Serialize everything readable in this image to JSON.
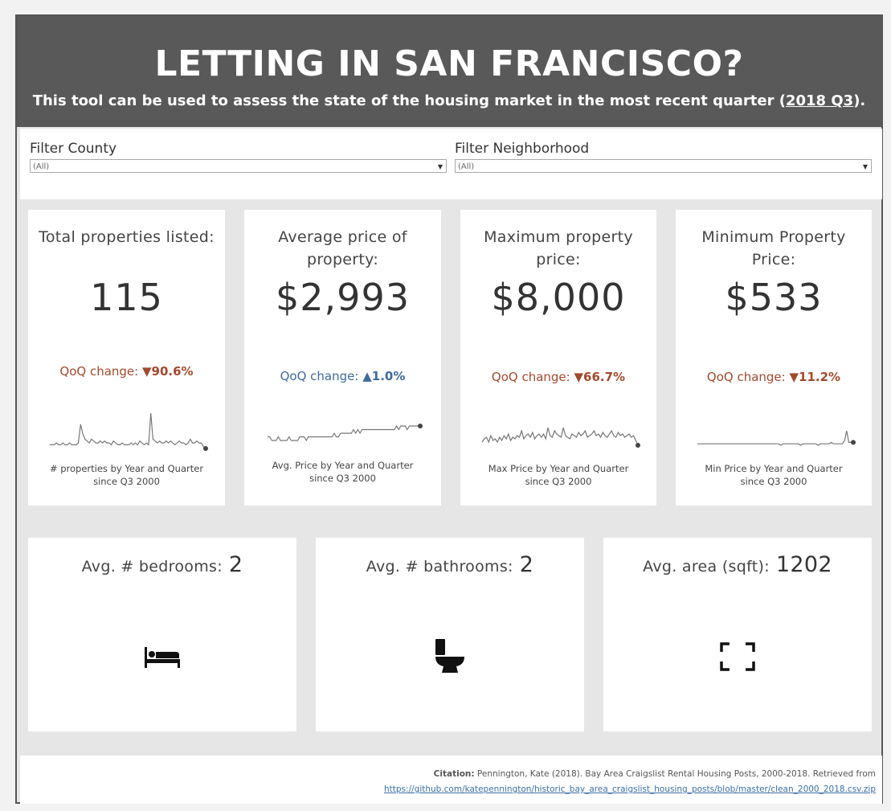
{
  "header": {
    "title": "LETTING IN SAN FRANCISCO?",
    "subtitle_pre": "This tool can be used to assess the state of the housing market in the most recent quarter (",
    "subtitle_link": "2018 Q3",
    "subtitle_post": ")."
  },
  "filters": {
    "county": {
      "label": "Filter County",
      "value": "(All)"
    },
    "neighborhood": {
      "label": "Filter Neighborhood",
      "value": "(All)"
    }
  },
  "kpis": [
    {
      "label": "Total properties listed:",
      "value": "115",
      "qoq_label": "QoQ change:",
      "arrow": "▼",
      "delta": "90.6%",
      "direction": "down",
      "caption": "# properties by Year and Quarter since Q3 2000"
    },
    {
      "label": "Average price of property:",
      "value": "$2,993",
      "qoq_label": "QoQ change:",
      "arrow": "▲",
      "delta": "1.0%",
      "direction": "up",
      "caption": "Avg. Price by Year and Quarter since Q3 2000"
    },
    {
      "label": "Maximum property price:",
      "value": "$8,000",
      "qoq_label": "QoQ change:",
      "arrow": "▼",
      "delta": "66.7%",
      "direction": "down",
      "caption": "Max Price by Year and Quarter since Q3 2000"
    },
    {
      "label": "Minimum Property Price:",
      "value": "$533",
      "qoq_label": "QoQ change:",
      "arrow": "▼",
      "delta": "11.2%",
      "direction": "down",
      "caption": "Min Price by Year and Quarter since Q3 2000"
    }
  ],
  "averages": {
    "bedrooms": {
      "label": "Avg. # bedrooms:",
      "value": "2",
      "icon": "bed-icon"
    },
    "bathrooms": {
      "label": "Avg. # bathrooms:",
      "value": "2",
      "icon": "toilet-icon"
    },
    "area": {
      "label": "Avg. area (sqft):",
      "value": "1202",
      "icon": "area-frame-icon"
    }
  },
  "footer": {
    "citation_label": "Citation:",
    "citation_text": " Pennington, Kate (2018).  Bay Area Craigslist Rental Housing Posts, 2000-2018. Retrieved from",
    "citation_link": "https://github.com/katepennington/historic_bay_area_craigslist_housing_posts/blob/master/clean_2000_2018.csv.zip"
  },
  "colors": {
    "header_bg": "#595959",
    "down": "#a34a2c",
    "up": "#3e6b9e",
    "link": "#3b6fa8"
  },
  "chart_data": [
    {
      "type": "line",
      "title": "# properties by Year and Quarter since Q3 2000",
      "series": [
        {
          "values": [
            3,
            3,
            3,
            4,
            3,
            3,
            4,
            3,
            3,
            4,
            3,
            3,
            3,
            4,
            14,
            9,
            6,
            5,
            4,
            6,
            5,
            4,
            4,
            5,
            4,
            5,
            4,
            4,
            3,
            5,
            4,
            3,
            3,
            4,
            3,
            3,
            3,
            4,
            3,
            4,
            3,
            5,
            4,
            3,
            4,
            3,
            20,
            6,
            5,
            4,
            5,
            4,
            4,
            5,
            4,
            5,
            4,
            3,
            4,
            5,
            4,
            4,
            3,
            4,
            6,
            4,
            4,
            5,
            4,
            4,
            2,
            1
          ]
        }
      ]
    },
    {
      "type": "line",
      "title": "Avg. Price by Year and Quarter since Q3 2000",
      "series": [
        {
          "values": [
            5,
            5,
            4,
            4,
            4,
            5,
            4,
            4,
            4,
            4,
            5,
            4,
            4,
            4,
            4,
            5,
            5,
            5,
            4,
            5,
            5,
            5,
            5,
            5,
            5,
            5,
            5,
            5,
            5,
            5,
            5,
            6,
            5,
            5,
            6,
            6,
            6,
            6,
            6,
            6,
            7,
            6,
            7,
            6,
            7,
            7,
            7,
            7,
            7,
            7,
            7,
            7,
            7,
            7,
            7,
            7,
            7,
            7,
            7,
            7,
            8,
            7,
            8,
            8,
            8,
            7,
            8,
            8,
            8,
            8,
            8,
            8
          ]
        }
      ]
    },
    {
      "type": "line",
      "title": "Max Price by Year and Quarter since Q3 2000",
      "series": [
        {
          "values": [
            5,
            7,
            8,
            5,
            9,
            6,
            7,
            5,
            8,
            6,
            9,
            7,
            10,
            6,
            8,
            7,
            9,
            8,
            12,
            7,
            9,
            10,
            8,
            11,
            7,
            9,
            10,
            8,
            10,
            7,
            14,
            9,
            8,
            12,
            10,
            9,
            8,
            14,
            9,
            8,
            7,
            10,
            9,
            8,
            11,
            9,
            10,
            12,
            8,
            9,
            10,
            12,
            9,
            10,
            8,
            11,
            9,
            8,
            10,
            12,
            9,
            8,
            11,
            9,
            10,
            8,
            9,
            10,
            8,
            9,
            6,
            3
          ]
        }
      ]
    },
    {
      "type": "line",
      "title": "Min Price by Year and Quarter since Q3 2000",
      "series": [
        {
          "values": [
            3,
            3,
            3,
            3,
            3,
            3,
            3,
            3,
            3,
            3,
            3,
            3,
            3,
            3,
            3,
            3,
            3,
            3,
            3,
            3,
            3,
            3,
            3,
            3,
            3,
            3,
            3,
            3,
            3,
            3,
            3,
            3,
            3,
            3,
            3,
            3,
            3,
            3,
            2,
            3,
            3,
            3,
            3,
            3,
            3,
            3,
            3,
            2,
            3,
            3,
            3,
            3,
            3,
            3,
            3,
            2,
            3,
            3,
            3,
            3,
            3,
            4,
            3,
            3,
            3,
            3,
            3,
            5,
            12,
            4,
            4,
            4
          ]
        }
      ]
    }
  ]
}
